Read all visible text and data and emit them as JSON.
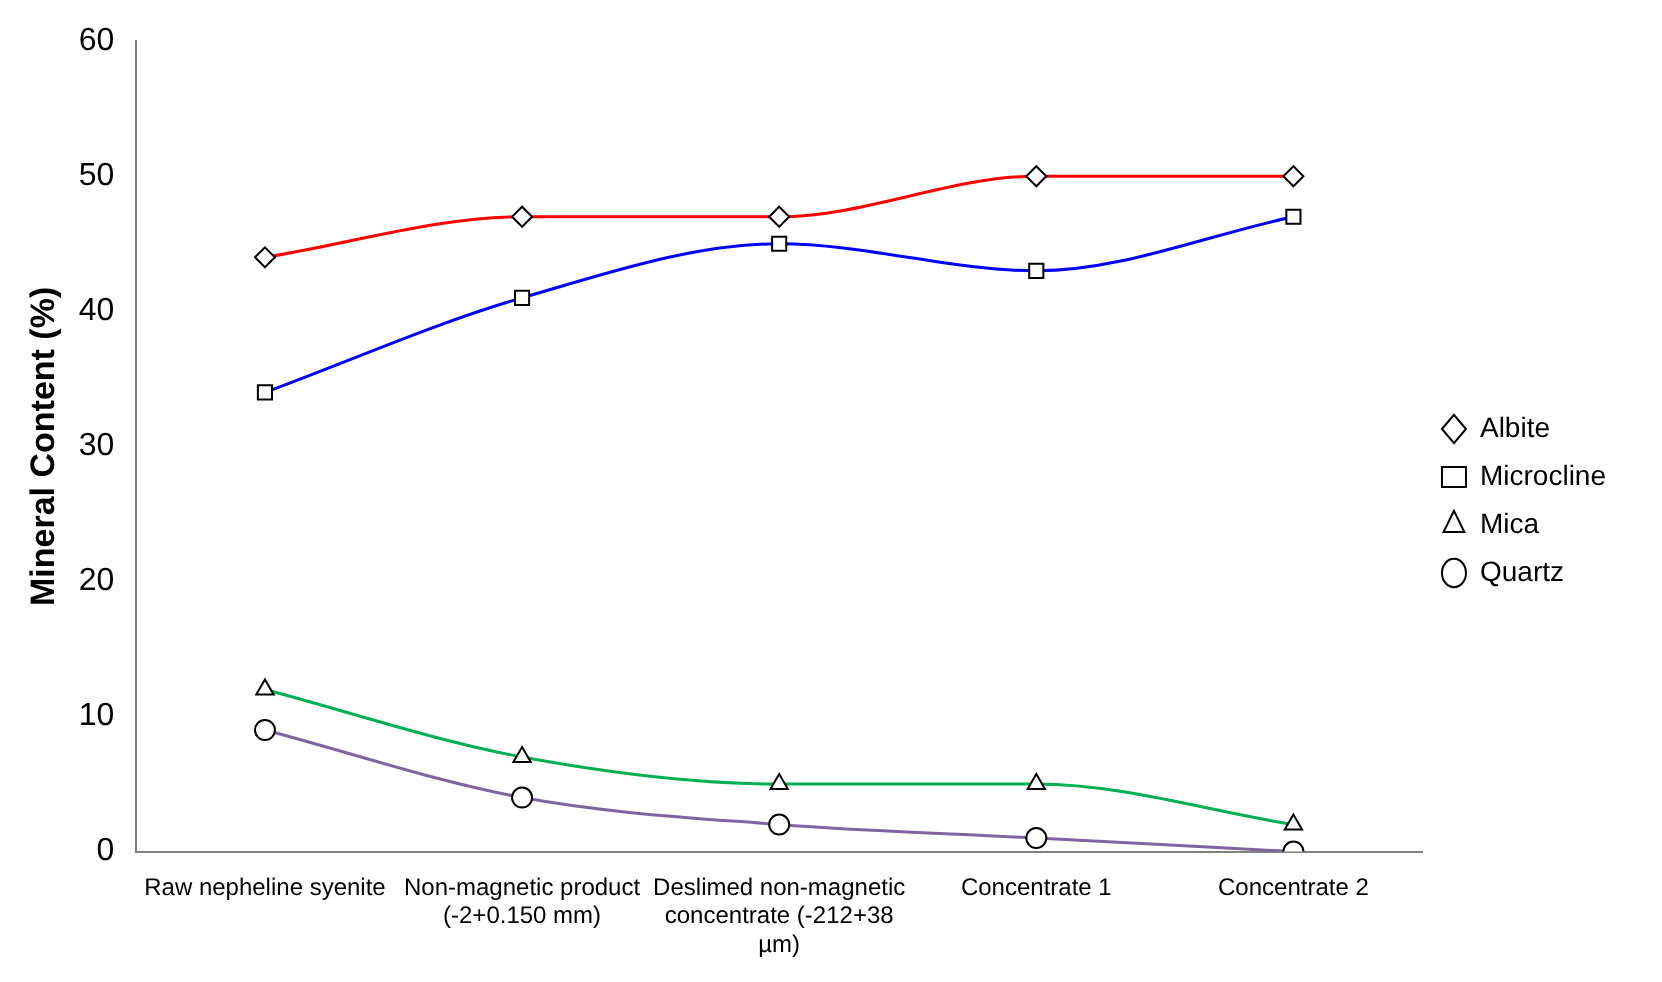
{
  "chart_data": {
    "type": "line",
    "ylabel": "Mineral Content (%)",
    "categories": [
      "Raw nepheline syenite",
      "Non-magnetic product (-2+0.150 mm)",
      "Deslimed non-magnetic concentrate (-212+38 µm)",
      "Concentrate 1",
      "Concentrate 2"
    ],
    "series": [
      {
        "name": "Albite",
        "color": "#ff0000",
        "marker": "diamond",
        "values": [
          44,
          47,
          47,
          50,
          50
        ]
      },
      {
        "name": "Microcline",
        "color": "#0000ff",
        "marker": "square",
        "values": [
          34,
          41,
          45,
          43,
          47
        ]
      },
      {
        "name": "Mica",
        "color": "#00b050",
        "marker": "triangle",
        "values": [
          12,
          7,
          5,
          5,
          2
        ]
      },
      {
        "name": "Quartz",
        "color": "#8064a2",
        "marker": "circle",
        "values": [
          9,
          4,
          2,
          1,
          0
        ]
      }
    ],
    "ylim": [
      0,
      60
    ],
    "yticks": [
      0,
      10,
      20,
      30,
      40,
      50,
      60
    ],
    "grid": false,
    "legend": "right"
  }
}
